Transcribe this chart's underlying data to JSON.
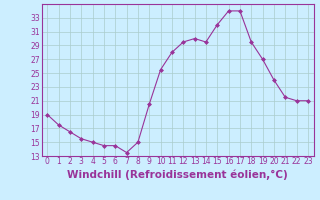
{
  "hours": [
    0,
    1,
    2,
    3,
    4,
    5,
    6,
    7,
    8,
    9,
    10,
    11,
    12,
    13,
    14,
    15,
    16,
    17,
    18,
    19,
    20,
    21,
    22,
    23
  ],
  "values": [
    19,
    17.5,
    16.5,
    15.5,
    15,
    14.5,
    14.5,
    13.5,
    15,
    20.5,
    25.5,
    28,
    29.5,
    30,
    29.5,
    32,
    34,
    34,
    29.5,
    27,
    24,
    21.5,
    21,
    21
  ],
  "line_color": "#993399",
  "marker": "D",
  "marker_size": 2,
  "bg_color": "#cceeff",
  "grid_color": "#aacccc",
  "xlabel": "Windchill (Refroidissement éolien,°C)",
  "xlabel_color": "#993399",
  "ylim": [
    13,
    35
  ],
  "yticks": [
    13,
    15,
    17,
    19,
    21,
    23,
    25,
    27,
    29,
    31,
    33
  ],
  "xtick_labels": [
    "0",
    "1",
    "2",
    "3",
    "4",
    "5",
    "6",
    "7",
    "8",
    "9",
    "10",
    "11",
    "12",
    "13",
    "14",
    "15",
    "16",
    "17",
    "18",
    "19",
    "20",
    "21",
    "22",
    "23"
  ],
  "tick_label_size": 5.5,
  "xlabel_size": 7.5
}
